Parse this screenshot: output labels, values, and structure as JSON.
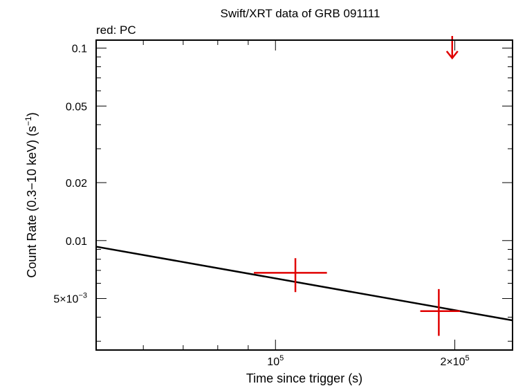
{
  "chart_data": {
    "type": "scatter",
    "title": "Swift/XRT data of GRB 091111",
    "subtitle": "red: PC",
    "xlabel": "Time since trigger (s)",
    "ylabel_main": "Count Rate (0.3−10 keV) (s",
    "ylabel_sup": "−1",
    "ylabel_tail": ")",
    "xscale": "log",
    "yscale": "log",
    "xlim": [
      50000,
      250000
    ],
    "ylim": [
      0.0027,
      0.11
    ],
    "x_ticks": [
      {
        "value": 100000,
        "base": "10",
        "sup": "5"
      },
      {
        "value": 200000,
        "base": "2×10",
        "sup": "5"
      }
    ],
    "y_ticks": [
      {
        "value": 0.1,
        "label": "0.1"
      },
      {
        "value": 0.05,
        "label": "0.05"
      },
      {
        "value": 0.02,
        "label": "0.02"
      },
      {
        "value": 0.01,
        "label": "0.01"
      },
      {
        "value": 0.005,
        "base": "5×10",
        "sup": "−3"
      }
    ],
    "series": [
      {
        "mode": "PC",
        "color": "#e00000",
        "points": [
          {
            "x": 108000,
            "y": 0.0068,
            "x_lo": 92000,
            "x_hi": 122000,
            "y_lo": 0.0054,
            "y_hi": 0.0081
          },
          {
            "x": 188000,
            "y": 0.0043,
            "x_lo": 175000,
            "x_hi": 204000,
            "y_lo": 0.0032,
            "y_hi": 0.0056
          }
        ],
        "upper_limits": [
          {
            "x": 198000,
            "y": 0.125
          }
        ]
      }
    ],
    "model_line": {
      "color": "#000000",
      "x": [
        50000,
        250000
      ],
      "y": [
        0.0093,
        0.00385
      ]
    }
  }
}
